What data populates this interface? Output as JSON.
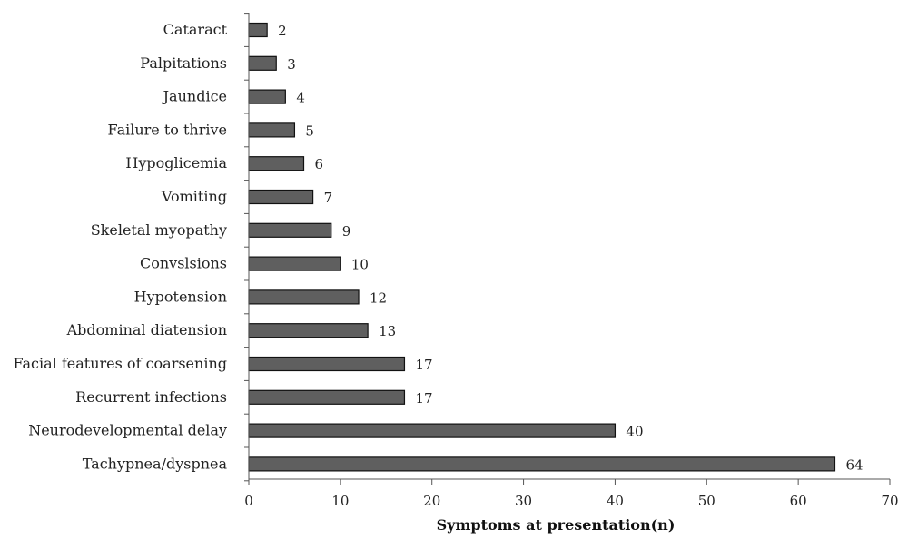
{
  "chart_data": {
    "type": "bar",
    "orientation": "horizontal",
    "categories": [
      "Cataract",
      "Palpitations",
      "Jaundice",
      "Failure to thrive",
      "Hypoglicemia",
      "Vomiting",
      "Skeletal myopathy",
      "Convslsions",
      "Hypotension",
      "Abdominal diatension",
      "Facial features of coarsening",
      "Recurrent infections",
      "Neurodevelopmental delay",
      "Tachypnea/dyspnea"
    ],
    "values": [
      2,
      3,
      4,
      5,
      6,
      7,
      9,
      10,
      12,
      13,
      17,
      17,
      40,
      64
    ],
    "xlabel": "Symptoms at presentation(n)",
    "ylabel": "",
    "xlim": [
      0,
      70
    ],
    "xticks": [
      0,
      10,
      20,
      30,
      40,
      50,
      60,
      70
    ],
    "grid": false,
    "data_labels": true,
    "bar_color": "#5f5f5f"
  }
}
